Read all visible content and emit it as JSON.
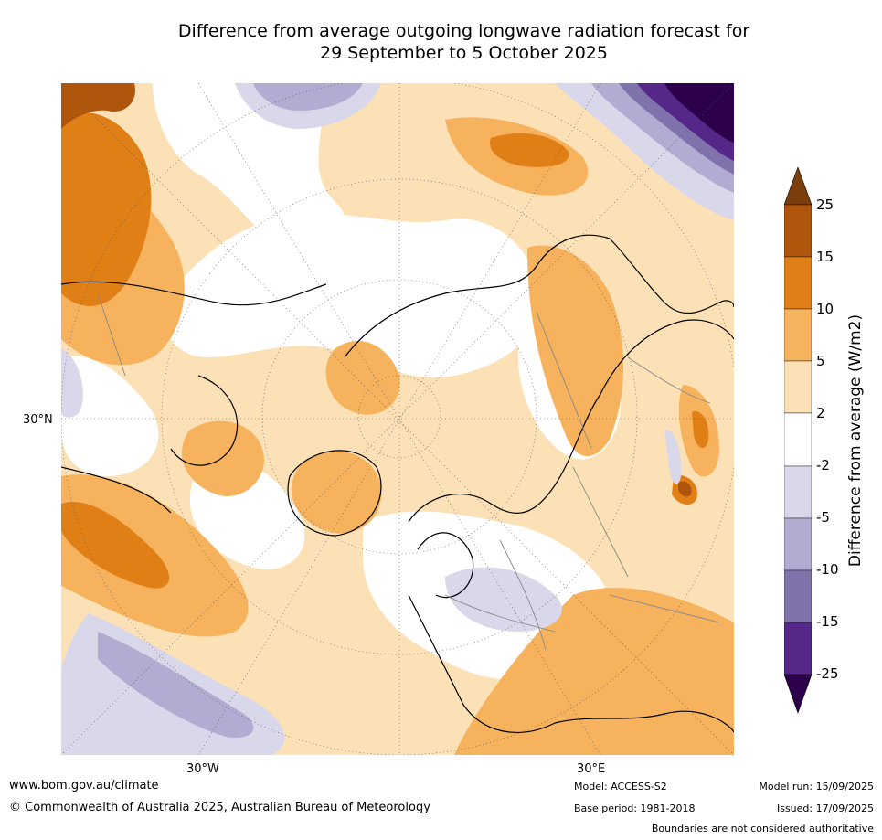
{
  "title": {
    "line1": "Difference from average outgoing longwave radiation forecast for",
    "line2": "29 September to 5 October 2025"
  },
  "map": {
    "lat_label": "30°N",
    "lon_labels": [
      "30°W",
      "30°E"
    ],
    "projection": "north polar stereographic"
  },
  "colorbar": {
    "label": "Difference from average (W/m2)",
    "ticks": [
      "25",
      "15",
      "10",
      "5",
      "2",
      "-2",
      "-5",
      "-10",
      "-15",
      "-25"
    ],
    "colors": {
      "above_25": "#7a3d0c",
      "15_to_25": "#b0560c",
      "10_to_15": "#e07f16",
      "5_to_10": "#f6b25c",
      "2_to_5": "#fde1b6",
      "neutral": "#ffffff",
      "minus2_to_minus5": "#d9d8ea",
      "minus5_to_minus10": "#b2abd2",
      "minus10_to_minus15": "#8073ac",
      "minus15_to_minus25": "#542788",
      "below_minus25": "#2d004b"
    }
  },
  "footer": {
    "website": "www.bom.gov.au/climate",
    "copyright": "© Commonwealth of Australia 2025, Australian Bureau of Meteorology",
    "model": "Model: ACCESS-S2",
    "model_run": "Model run: 15/09/2025",
    "base_period": "Base period: 1981-2018",
    "issued": "Issued: 17/09/2025",
    "disclaimer": "Boundaries are not considered authoritative"
  }
}
